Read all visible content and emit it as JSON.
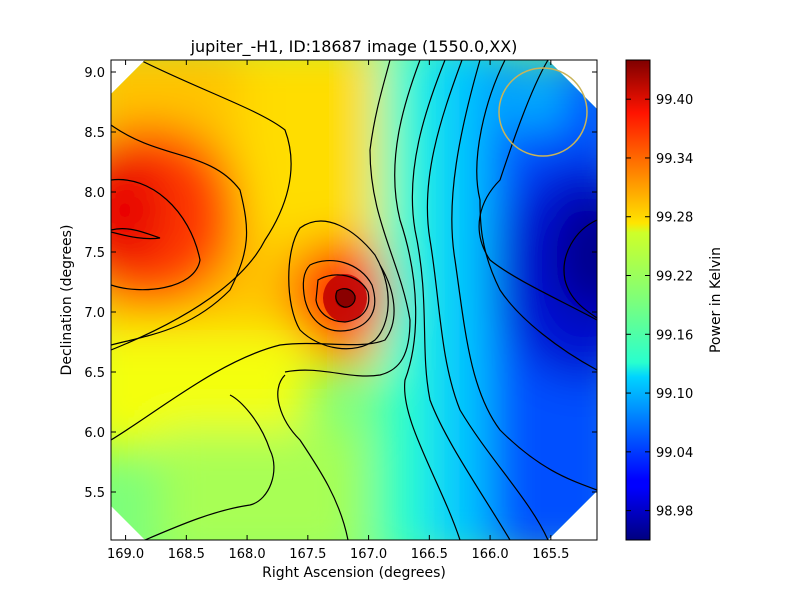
{
  "chart_data": {
    "type": "heatmap",
    "title": "jupiter_-H1, ID:18687 image (1550.0,XX)",
    "xlabel": "Right Ascension (degrees)",
    "ylabel": "Declination (degrees)",
    "colorbar_label": "Power in Kelvin",
    "xlim": [
      169.12,
      165.12
    ],
    "ylim": [
      5.1,
      9.1
    ],
    "x_axis_inverted": true,
    "x_ticks": [
      169.0,
      168.5,
      168.0,
      167.5,
      167.0,
      166.5,
      166.0,
      165.5
    ],
    "x_tick_labels": [
      "169.0",
      "168.5",
      "168.0",
      "167.5",
      "167.0",
      "166.5",
      "166.0",
      "165.5"
    ],
    "y_ticks": [
      5.5,
      6.0,
      6.5,
      7.0,
      7.5,
      8.0,
      8.5,
      9.0
    ],
    "y_tick_labels": [
      "5.5",
      "6.0",
      "6.5",
      "7.0",
      "7.5",
      "8.0",
      "8.5",
      "9.0"
    ],
    "colorbar_range": [
      98.95,
      99.44
    ],
    "colorbar_ticks": [
      98.98,
      99.04,
      99.1,
      99.16,
      99.22,
      99.28,
      99.34,
      99.4
    ],
    "colorbar_tick_labels": [
      "98.98",
      "99.04",
      "99.10",
      "99.16",
      "99.22",
      "99.28",
      "99.34",
      "99.40"
    ],
    "colormap": "jet",
    "features": [
      {
        "type": "peak",
        "ra": 168.95,
        "dec": 7.75,
        "value": 99.4
      },
      {
        "type": "peak",
        "ra": 167.2,
        "dec": 7.1,
        "value": 99.44
      },
      {
        "type": "minimum",
        "ra": 165.2,
        "dec": 7.45,
        "value": 98.96
      }
    ],
    "beam_circle": {
      "ra": 165.6,
      "dec": 8.67,
      "radius_deg": 0.37,
      "color": "#c8b45a"
    },
    "contours": true,
    "grid": false,
    "legend": "none"
  }
}
